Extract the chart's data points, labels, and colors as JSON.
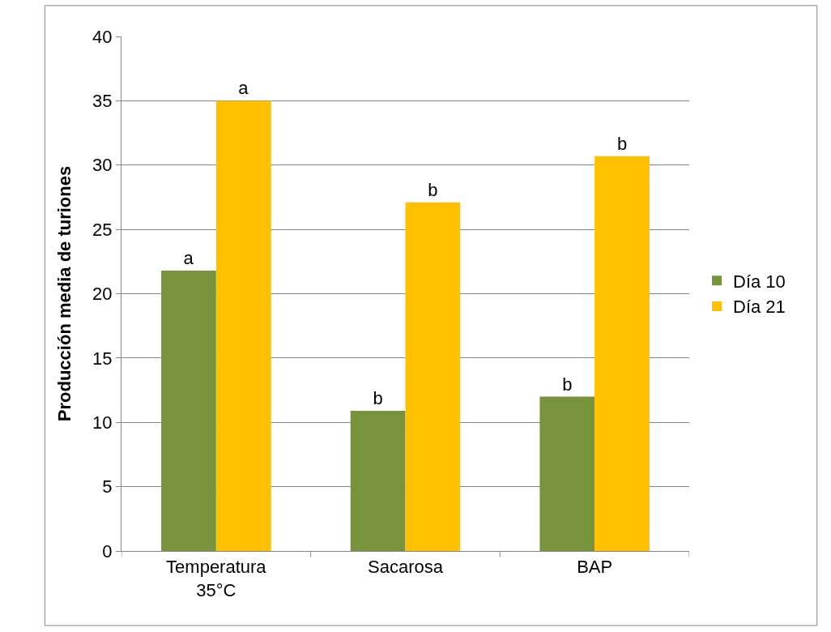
{
  "chart_data": {
    "type": "bar",
    "ylabel": "Producción media de turiones",
    "categories": [
      "Temperatura 35°C",
      "Sacarosa",
      "BAP"
    ],
    "series": [
      {
        "name": "Día 10",
        "color": "#77933c",
        "values": [
          21.8,
          10.9,
          12.0
        ],
        "value_labels": [
          "a",
          "b",
          "b"
        ]
      },
      {
        "name": "Día 21",
        "color": "#ffc000",
        "values": [
          35.0,
          27.1,
          30.7
        ],
        "value_labels": [
          "a",
          "b",
          "b"
        ]
      }
    ],
    "ylim": [
      0,
      40
    ],
    "yticks": [
      0,
      5,
      10,
      15,
      20,
      25,
      30,
      35,
      40
    ],
    "grid": "y",
    "legend": "right"
  }
}
